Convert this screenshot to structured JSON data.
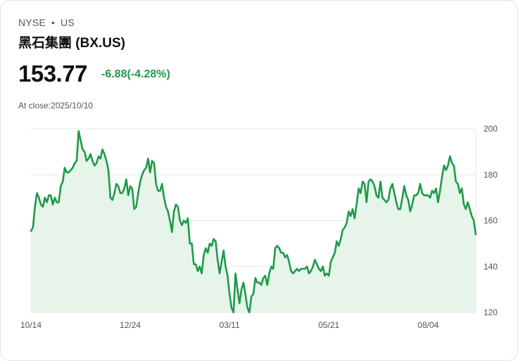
{
  "header": {
    "exchange": "NYSE",
    "region": "US",
    "separator": "•",
    "name": "黑石集團 (BX.US)",
    "price": "153.77",
    "change": "-6.88(-4.28%)",
    "close_label": "At close:2025/10/10"
  },
  "colors": {
    "line": "#1e9a4a",
    "fill": "#e6f4ea",
    "grid": "#e6e6e6",
    "change": "#1e9a4a"
  },
  "chart_data": {
    "type": "area",
    "title": "黑石集團 (BX.US)",
    "xlabel": "",
    "ylabel": "",
    "ylim": [
      120,
      200
    ],
    "yticks": [
      120,
      140,
      160,
      180,
      200
    ],
    "xtick_labels": [
      "10/14",
      "12/24",
      "03/11",
      "05/21",
      "08/04"
    ],
    "xtick_index": [
      0,
      50,
      100,
      150,
      200
    ],
    "values": [
      155.5,
      157,
      166,
      172,
      170,
      167,
      166,
      170,
      168,
      171,
      171,
      167,
      170,
      168,
      168,
      175,
      177,
      183,
      181,
      181,
      182,
      183,
      185,
      186,
      199,
      195,
      191,
      190,
      186,
      187,
      189,
      186,
      184,
      185,
      188,
      187,
      191,
      189,
      186,
      182,
      170,
      169,
      172,
      176,
      175,
      172,
      172,
      174,
      178,
      171,
      175,
      174,
      165,
      166,
      172,
      177,
      180,
      182,
      183,
      187,
      181,
      186,
      185,
      176,
      173,
      173,
      176,
      170,
      166,
      164,
      160,
      155,
      164,
      167,
      166,
      160,
      158,
      160,
      159,
      161,
      150,
      150,
      141,
      141,
      138,
      140,
      137,
      145,
      148,
      146,
      150,
      149,
      152,
      151,
      143,
      137,
      142,
      147,
      140,
      136,
      128,
      122,
      120,
      137,
      130,
      124,
      130,
      133,
      128,
      122,
      120,
      127,
      128,
      135,
      133,
      133,
      132,
      135,
      136,
      132,
      137,
      140,
      139,
      148,
      149,
      148,
      146,
      146,
      144,
      145,
      142,
      138,
      137,
      138,
      139,
      138,
      139,
      139,
      139,
      140,
      137,
      138,
      140,
      143,
      141,
      139,
      138,
      140,
      136,
      137,
      136,
      142,
      144,
      146,
      151,
      149,
      152,
      156,
      157,
      159,
      164,
      162,
      165,
      161,
      167,
      174,
      172,
      177,
      176,
      168,
      177,
      178,
      177,
      175,
      171,
      170,
      177,
      170,
      169,
      168,
      169,
      174,
      176,
      172,
      168,
      165,
      165,
      170,
      175,
      171,
      169,
      164,
      167,
      171,
      171,
      172,
      176,
      172,
      171,
      171,
      171,
      170,
      173,
      172,
      174,
      168,
      173,
      179,
      184,
      182,
      184,
      188,
      185,
      184,
      177,
      176,
      172,
      174,
      167,
      165,
      168,
      165,
      162,
      160,
      154
    ]
  }
}
